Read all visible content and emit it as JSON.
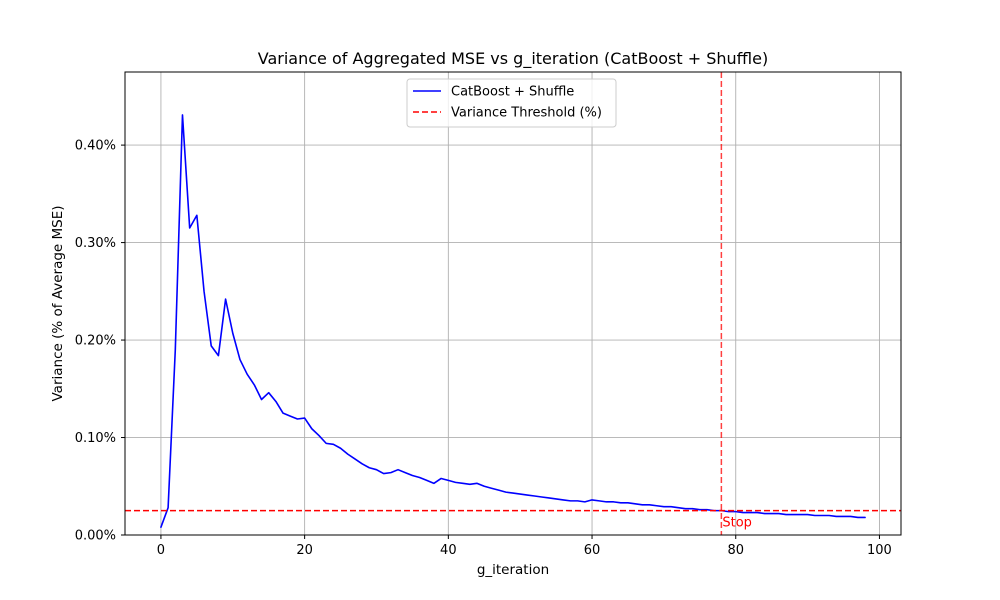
{
  "chart_data": {
    "type": "line",
    "title": "Variance of Aggregated MSE vs g_iteration (CatBoost + Shuffle)",
    "xlabel": "g_iteration",
    "ylabel": "Variance (% of Average MSE)",
    "xlim": [
      -5,
      103
    ],
    "ylim": [
      0,
      0.475
    ],
    "xticks": [
      0,
      20,
      40,
      60,
      80,
      100
    ],
    "xtick_labels": [
      "0",
      "20",
      "40",
      "60",
      "80",
      "100"
    ],
    "yticks": [
      0,
      0.1,
      0.2,
      0.3,
      0.4
    ],
    "ytick_labels": [
      "0.00%",
      "0.10%",
      "0.20%",
      "0.30%",
      "0.40%"
    ],
    "grid": true,
    "legend_position": "top-center",
    "series": [
      {
        "name": "CatBoost + Shuffle",
        "color": "#0000ff",
        "style": "solid",
        "x": [
          0,
          1,
          2,
          3,
          4,
          5,
          6,
          7,
          8,
          9,
          10,
          11,
          12,
          13,
          14,
          15,
          16,
          17,
          18,
          19,
          20,
          21,
          22,
          23,
          24,
          25,
          26,
          27,
          28,
          29,
          30,
          31,
          32,
          33,
          34,
          35,
          36,
          37,
          38,
          39,
          40,
          41,
          42,
          43,
          44,
          45,
          46,
          47,
          48,
          49,
          50,
          51,
          52,
          53,
          54,
          55,
          56,
          57,
          58,
          59,
          60,
          61,
          62,
          63,
          64,
          65,
          66,
          67,
          68,
          69,
          70,
          71,
          72,
          73,
          74,
          75,
          76,
          77,
          78,
          79,
          80,
          81,
          82,
          83,
          84,
          85,
          86,
          87,
          88,
          89,
          90,
          91,
          92,
          93,
          94,
          95,
          96,
          97,
          98
        ],
        "y": [
          0.008,
          0.028,
          0.19,
          0.431,
          0.315,
          0.328,
          0.25,
          0.194,
          0.184,
          0.242,
          0.207,
          0.18,
          0.165,
          0.154,
          0.139,
          0.146,
          0.137,
          0.125,
          0.122,
          0.119,
          0.12,
          0.109,
          0.102,
          0.094,
          0.093,
          0.089,
          0.083,
          0.078,
          0.073,
          0.069,
          0.067,
          0.063,
          0.064,
          0.067,
          0.064,
          0.061,
          0.059,
          0.056,
          0.053,
          0.058,
          0.056,
          0.054,
          0.053,
          0.052,
          0.053,
          0.05,
          0.048,
          0.046,
          0.044,
          0.043,
          0.042,
          0.041,
          0.04,
          0.039,
          0.038,
          0.037,
          0.036,
          0.035,
          0.035,
          0.034,
          0.036,
          0.035,
          0.034,
          0.034,
          0.033,
          0.033,
          0.032,
          0.031,
          0.031,
          0.03,
          0.029,
          0.029,
          0.028,
          0.027,
          0.027,
          0.026,
          0.026,
          0.025,
          0.025,
          0.024,
          0.024,
          0.023,
          0.023,
          0.023,
          0.022,
          0.022,
          0.022,
          0.021,
          0.021,
          0.021,
          0.021,
          0.02,
          0.02,
          0.02,
          0.019,
          0.019,
          0.019,
          0.018,
          0.018
        ]
      },
      {
        "name": "Variance Threshold (%)",
        "color": "#ff0000",
        "style": "dashed",
        "type": "hline",
        "y": 0.025
      }
    ],
    "vline": {
      "x": 78,
      "color": "#ff0000",
      "style": "dashed",
      "opacity": 0.75
    },
    "annotations": [
      {
        "text": "Stop",
        "x": 78,
        "y": 0.025,
        "color": "#ff0000"
      }
    ]
  }
}
